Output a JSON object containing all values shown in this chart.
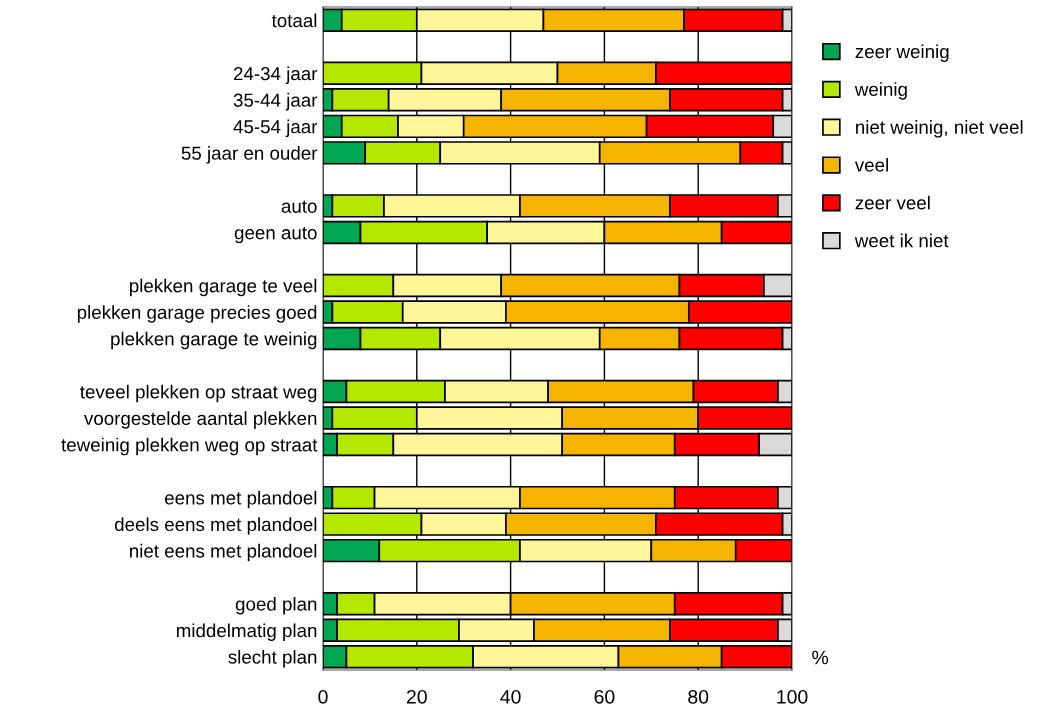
{
  "chart_data": {
    "type": "bar",
    "orientation": "horizontal",
    "stacked": true,
    "xlabel": "%",
    "categories": [
      "totaal",
      null,
      "24-34 jaar",
      "35-44 jaar",
      "45-54 jaar",
      "55 jaar en ouder",
      null,
      "auto",
      "geen auto",
      null,
      "plekken garage te veel",
      "plekken garage precies goed",
      "plekken garage te weinig",
      null,
      "teveel plekken op straat weg",
      "voorgestelde aantal plekken",
      "teweinig plekken weg op straat",
      null,
      "eens met plandoel",
      "deels eens met plandoel",
      "niet eens met plandoel",
      null,
      "goed plan",
      "middelmatig plan",
      "slecht plan"
    ],
    "series": [
      {
        "name": "zeer weinig",
        "color": "#00a651",
        "values": [
          4,
          null,
          0,
          2,
          4,
          9,
          null,
          2,
          8,
          null,
          0,
          2,
          8,
          null,
          5,
          2,
          3,
          null,
          2,
          0,
          12,
          null,
          3,
          3,
          5
        ]
      },
      {
        "name": "weinig",
        "color": "#b5e800",
        "values": [
          16,
          null,
          21,
          12,
          12,
          16,
          null,
          11,
          27,
          null,
          15,
          15,
          17,
          null,
          21,
          18,
          12,
          null,
          9,
          21,
          30,
          null,
          8,
          26,
          27
        ]
      },
      {
        "name": "niet weinig, niet veel",
        "color": "#fff599",
        "values": [
          27,
          null,
          29,
          24,
          14,
          34,
          null,
          29,
          25,
          null,
          23,
          22,
          34,
          null,
          22,
          31,
          36,
          null,
          31,
          18,
          28,
          null,
          29,
          16,
          31
        ]
      },
      {
        "name": "veel",
        "color": "#f5b400",
        "values": [
          30,
          null,
          21,
          36,
          39,
          30,
          null,
          32,
          25,
          null,
          38,
          39,
          17,
          null,
          31,
          29,
          24,
          null,
          33,
          32,
          18,
          null,
          35,
          29,
          22
        ]
      },
      {
        "name": "zeer veel",
        "color": "#ff0000",
        "values": [
          21,
          null,
          29,
          24,
          27,
          9,
          null,
          23,
          15,
          null,
          18,
          22,
          22,
          null,
          18,
          20,
          18,
          null,
          22,
          27,
          12,
          null,
          23,
          23,
          15
        ]
      },
      {
        "name": "weet ik niet",
        "color": "#d9d9d9",
        "values": [
          2,
          null,
          0,
          2,
          4,
          2,
          null,
          3,
          0,
          null,
          6,
          0,
          2,
          null,
          3,
          0,
          7,
          null,
          3,
          2,
          0,
          null,
          2,
          3,
          0
        ]
      }
    ],
    "xlim": [
      0,
      100
    ],
    "xticks": [
      0,
      20,
      40,
      60,
      80,
      100
    ],
    "grid": "x",
    "legend": "top right"
  }
}
